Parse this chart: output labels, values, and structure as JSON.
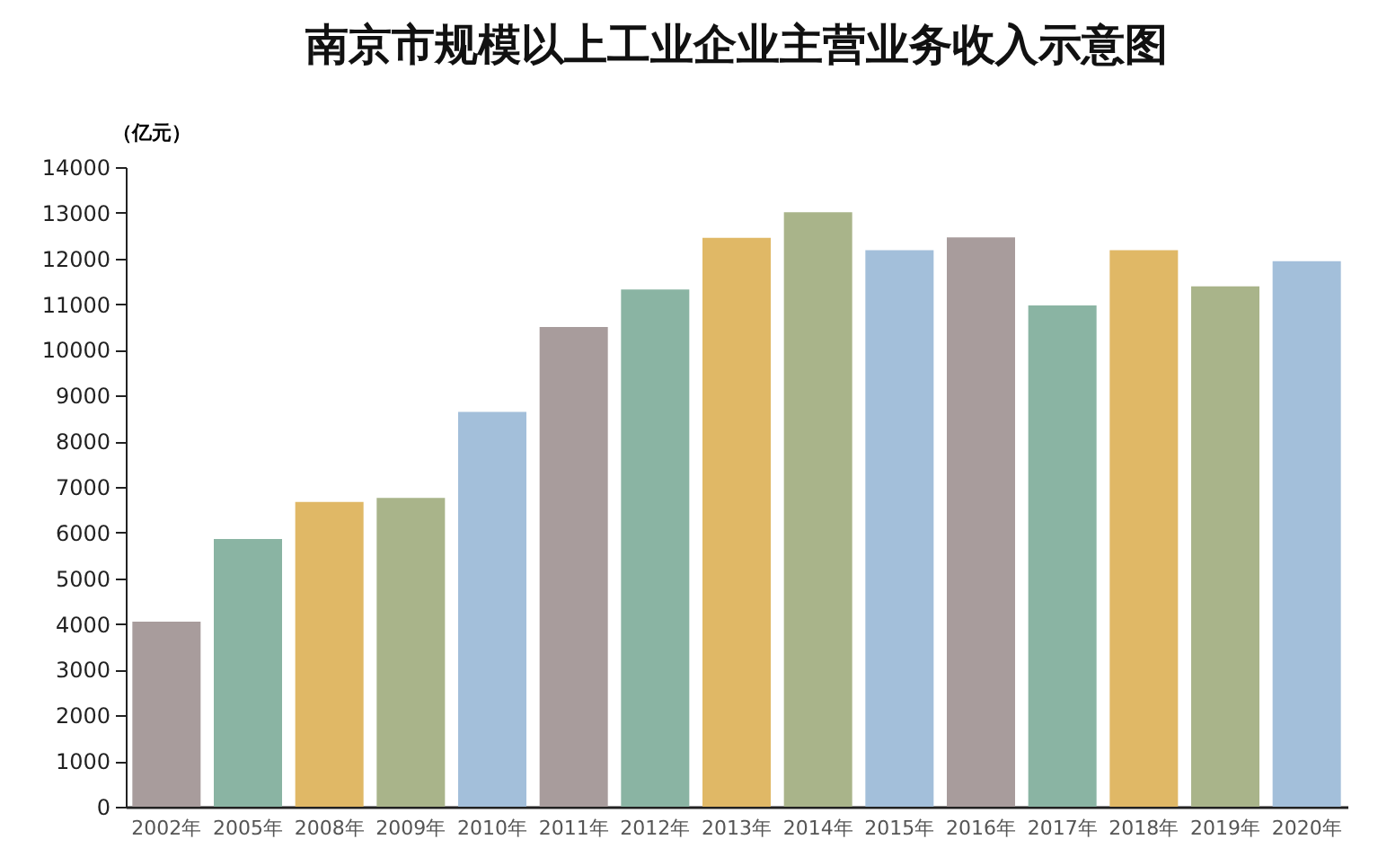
{
  "chart_data": {
    "type": "bar",
    "title": "南京市规模以上工业企业主营业务收入示意图",
    "ylabel": "（亿元）",
    "categories": [
      "2002年",
      "2005年",
      "2008年",
      "2009年",
      "2010年",
      "2011年",
      "2012年",
      "2013年",
      "2014年",
      "2015年",
      "2016年",
      "2017年",
      "2018年",
      "2019年",
      "2020年"
    ],
    "values": [
      4050,
      5860,
      6670,
      6760,
      8640,
      10500,
      11320,
      12450,
      13010,
      12180,
      12460,
      10970,
      12180,
      11390,
      11940
    ],
    "colors": [
      "#a89c9c",
      "#8ab4a3",
      "#e0b866",
      "#a9b48a",
      "#a3bfda",
      "#a89c9c",
      "#8ab4a3",
      "#e0b866",
      "#a9b48a",
      "#a3bfda",
      "#a89c9c",
      "#8ab4a3",
      "#e0b866",
      "#a9b48a",
      "#a3bfda"
    ],
    "ylim": [
      0,
      14000
    ],
    "yticks": [
      0,
      1000,
      2000,
      3000,
      4000,
      5000,
      6000,
      7000,
      8000,
      9000,
      10000,
      11000,
      12000,
      13000,
      14000
    ],
    "grid": false,
    "legend": false
  }
}
